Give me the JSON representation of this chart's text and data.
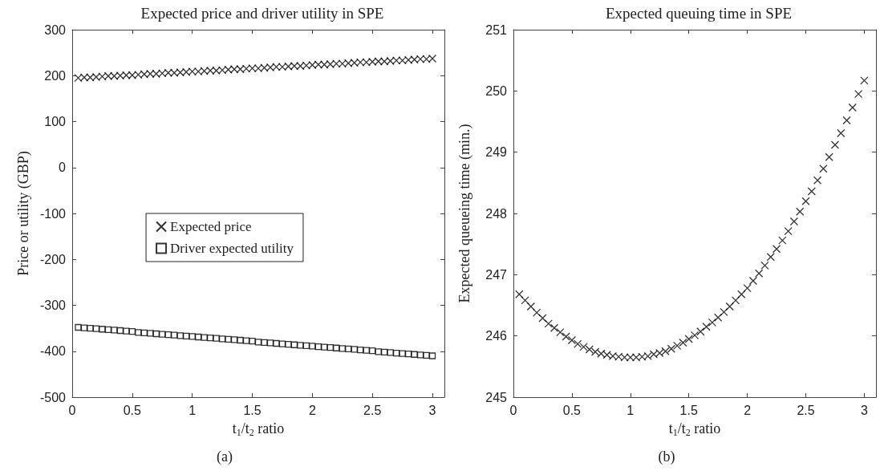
{
  "chart_data": [
    {
      "type": "scatter",
      "title": "Expected price and driver utility in SPE",
      "xlabel": "t$_{1}$/t$_{2}$ ratio",
      "ylabel": "Price or utility (GBP)",
      "annotations": [
        "(a)"
      ],
      "x": [
        0.05,
        0.1,
        0.15,
        0.2,
        0.25,
        0.3,
        0.35,
        0.4,
        0.45,
        0.5,
        0.55,
        0.6,
        0.65,
        0.7,
        0.75,
        0.8,
        0.85,
        0.9,
        0.95,
        1.0,
        1.05,
        1.1,
        1.15,
        1.2,
        1.25,
        1.3,
        1.35,
        1.4,
        1.45,
        1.5,
        1.55,
        1.6,
        1.65,
        1.7,
        1.75,
        1.8,
        1.85,
        1.9,
        1.95,
        2.0,
        2.05,
        2.1,
        2.15,
        2.2,
        2.25,
        2.3,
        2.35,
        2.4,
        2.45,
        2.5,
        2.55,
        2.6,
        2.65,
        2.7,
        2.75,
        2.8,
        2.85,
        2.9,
        2.95,
        3.0
      ],
      "series": [
        {
          "name": "Expected price",
          "color": "#000000",
          "marker": "cross",
          "values": [
            195,
            196,
            196,
            197,
            198,
            199,
            199,
            200,
            201,
            201,
            202,
            203,
            204,
            204,
            205,
            206,
            206,
            207,
            208,
            209,
            209,
            210,
            211,
            211,
            212,
            213,
            214,
            214,
            215,
            216,
            216,
            217,
            218,
            219,
            219,
            220,
            221,
            221,
            222,
            223,
            224,
            224,
            225,
            226,
            226,
            227,
            228,
            229,
            229,
            230,
            231,
            231,
            232,
            233,
            233,
            234,
            235,
            236,
            236,
            237
          ]
        },
        {
          "name": "Driver expected utility",
          "color": "#000000",
          "marker": "square",
          "values": [
            -348,
            -349,
            -350,
            -351,
            -352,
            -353,
            -354,
            -355,
            -356,
            -357,
            -359,
            -360,
            -361,
            -362,
            -363,
            -364,
            -365,
            -366,
            -367,
            -368,
            -369,
            -370,
            -371,
            -372,
            -373,
            -374,
            -375,
            -376,
            -377,
            -378,
            -380,
            -381,
            -382,
            -383,
            -384,
            -385,
            -386,
            -387,
            -388,
            -389,
            -390,
            -391,
            -392,
            -393,
            -394,
            -395,
            -396,
            -397,
            -398,
            -399,
            -401,
            -402,
            -403,
            -404,
            -405,
            -406,
            -407,
            -408,
            -409,
            -410
          ]
        }
      ],
      "xlim": [
        0,
        3.1
      ],
      "xticks": [
        0,
        0.5,
        1,
        1.5,
        2,
        2.5,
        3
      ],
      "ylim": [
        -500,
        300
      ],
      "yticks": [
        -500,
        -400,
        -300,
        -200,
        -100,
        0,
        100,
        200,
        300
      ],
      "grid": false,
      "legend": "center"
    },
    {
      "type": "scatter",
      "title": "Expected queuing time in SPE",
      "xlabel": "t$_{1}$/t$_{2}$ ratio",
      "ylabel": "Expected queueing time (min.)",
      "annotations": [
        "(b)"
      ],
      "x": [
        0.05,
        0.1,
        0.15,
        0.2,
        0.25,
        0.3,
        0.35,
        0.4,
        0.45,
        0.5,
        0.55,
        0.6,
        0.65,
        0.7,
        0.75,
        0.8,
        0.85,
        0.9,
        0.95,
        1.0,
        1.05,
        1.1,
        1.15,
        1.2,
        1.25,
        1.3,
        1.35,
        1.4,
        1.45,
        1.5,
        1.55,
        1.6,
        1.65,
        1.7,
        1.75,
        1.8,
        1.85,
        1.9,
        1.95,
        2.0,
        2.05,
        2.1,
        2.15,
        2.2,
        2.25,
        2.3,
        2.35,
        2.4,
        2.45,
        2.5,
        2.55,
        2.6,
        2.65,
        2.7,
        2.75,
        2.8,
        2.85,
        2.9,
        2.95,
        3.0
      ],
      "series": [
        {
          "color": "#000000",
          "marker": "cross",
          "values": [
            246.68,
            246.58,
            246.48,
            246.38,
            246.29,
            246.2,
            246.13,
            246.06,
            245.99,
            245.93,
            245.87,
            245.82,
            245.78,
            245.74,
            245.71,
            245.69,
            245.67,
            245.66,
            245.65,
            245.65,
            245.65,
            245.66,
            245.67,
            245.7,
            245.72,
            245.75,
            245.79,
            245.84,
            245.89,
            245.95,
            246.01,
            246.07,
            246.15,
            246.22,
            246.3,
            246.39,
            246.48,
            246.58,
            246.68,
            246.78,
            246.9,
            247.02,
            247.15,
            247.29,
            247.42,
            247.56,
            247.71,
            247.87,
            248.03,
            248.2,
            248.36,
            248.54,
            248.73,
            248.92,
            249.12,
            249.31,
            249.52,
            249.73,
            249.95,
            250.17
          ]
        }
      ],
      "xlim": [
        0,
        3.1
      ],
      "xticks": [
        0,
        0.5,
        1,
        1.5,
        2,
        2.5,
        3
      ],
      "ylim": [
        245,
        251
      ],
      "yticks": [
        245,
        246,
        247,
        248,
        249,
        250,
        251
      ],
      "grid": false,
      "legend": false
    }
  ]
}
